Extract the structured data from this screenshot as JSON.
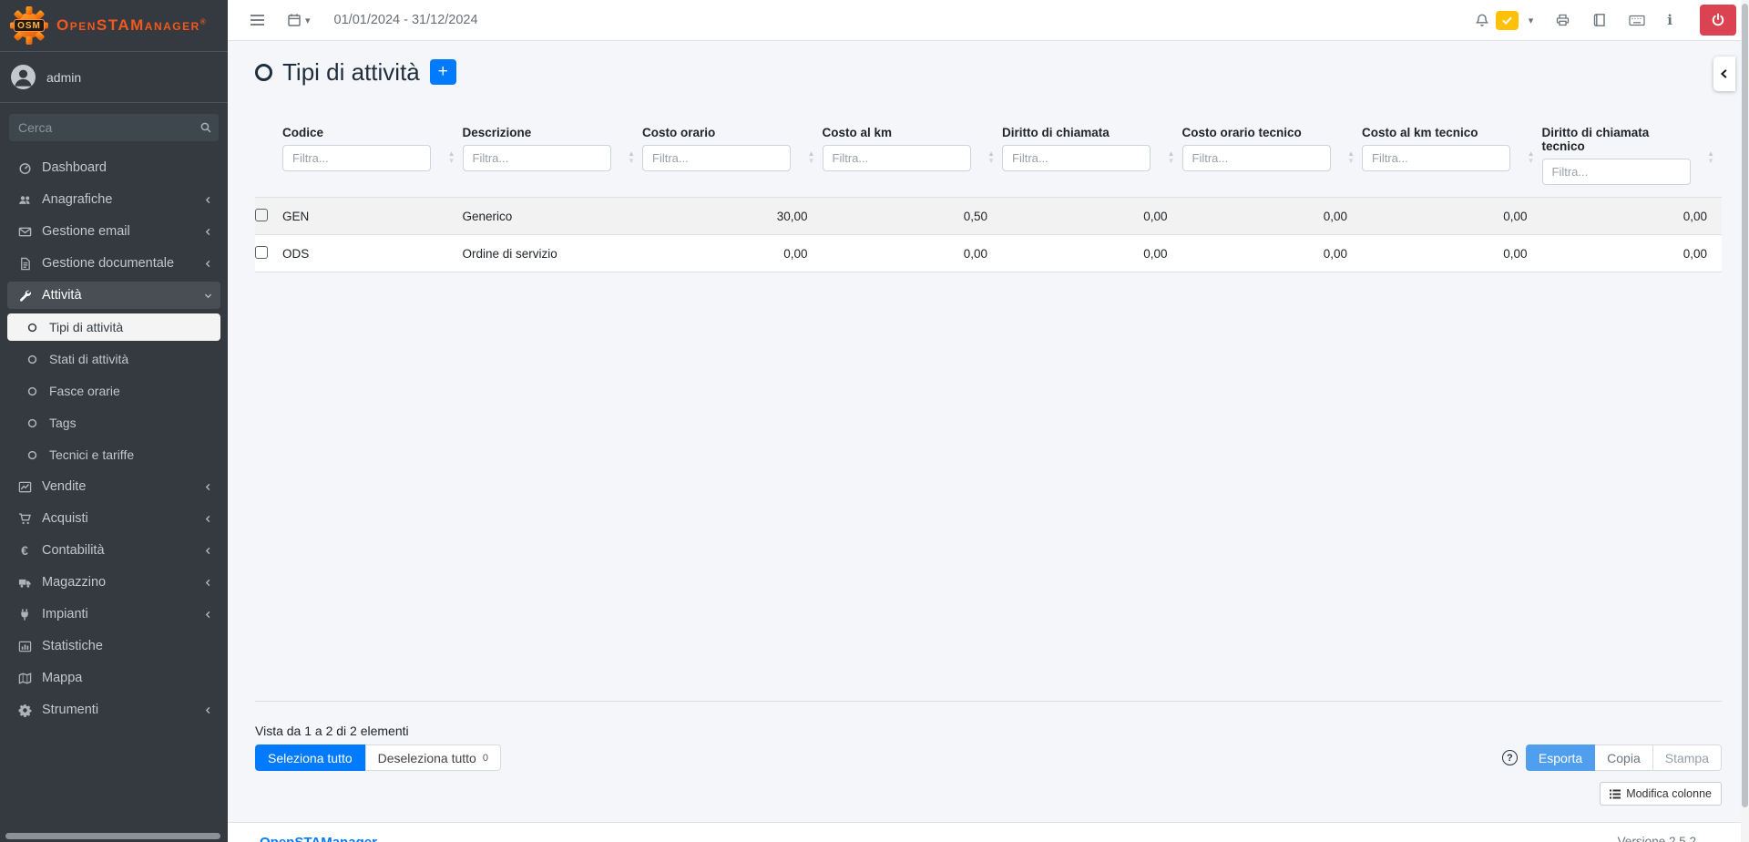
{
  "app": {
    "brand_osm": "OSM",
    "brand_name": "OpenSTAManager",
    "brand_reg": "®"
  },
  "user": {
    "name": "admin"
  },
  "sidebar": {
    "search_placeholder": "Cerca",
    "items": [
      {
        "label": "Dashboard"
      },
      {
        "label": "Anagrafiche"
      },
      {
        "label": "Gestione email"
      },
      {
        "label": "Gestione documentale"
      },
      {
        "label": "Attività"
      },
      {
        "label": "Vendite"
      },
      {
        "label": "Acquisti"
      },
      {
        "label": "Contabilità"
      },
      {
        "label": "Magazzino"
      },
      {
        "label": "Impianti"
      },
      {
        "label": "Statistiche"
      },
      {
        "label": "Mappa"
      },
      {
        "label": "Strumenti"
      }
    ],
    "attivita_submenu": [
      "Tipi di attività",
      "Stati di attività",
      "Fasce orarie",
      "Tags",
      "Tecnici e tariffe"
    ]
  },
  "topbar": {
    "date_range": "01/01/2024 - 31/12/2024"
  },
  "page": {
    "title": "Tipi di attività",
    "add_button": "+"
  },
  "table": {
    "filter_placeholder": "Filtra...",
    "columns": [
      "Codice",
      "Descrizione",
      "Costo orario",
      "Costo al km",
      "Diritto di chiamata",
      "Costo orario tecnico",
      "Costo al km tecnico",
      "Diritto di chiamata tecnico"
    ],
    "rows": [
      [
        "GEN",
        "Generico",
        "30,00",
        "0,50",
        "0,00",
        "0,00",
        "0,00",
        "0,00"
      ],
      [
        "ODS",
        "Ordine di servizio",
        "0,00",
        "0,00",
        "0,00",
        "0,00",
        "0,00",
        "0,00"
      ]
    ],
    "info": "Vista da 1 a 2 di 2 elementi",
    "select_all": "Seleziona tutto",
    "deselect_all": "Deseleziona tutto",
    "deselect_count": "0",
    "export_label": "Esporta",
    "copy_label": "Copia",
    "print_label": "Stampa",
    "edit_columns": "Modifica colonne"
  },
  "icons": {
    "caret_down": "▾",
    "sort_asc": "▲",
    "sort_desc": "▼",
    "euro": "€",
    "info": "i",
    "help": "?"
  },
  "footer": {
    "link": "OpenSTAManager",
    "version": "Versione 2.5.2"
  },
  "colors": {
    "primary": "#007bff",
    "warning": "#ffc107",
    "danger": "#db4352",
    "sidebar_bg": "#343a40",
    "export_blue": "#4f9fee",
    "brand_orange": "#f4571c"
  }
}
